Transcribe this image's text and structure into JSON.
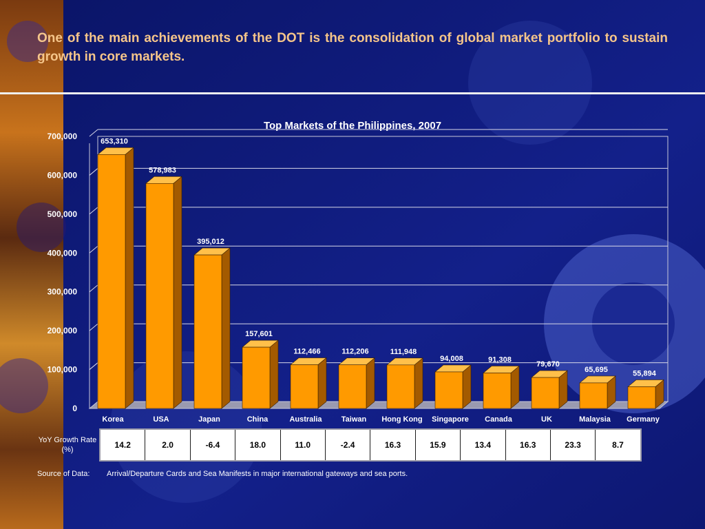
{
  "slide": {
    "heading": "One of the main achievements of the DOT is the consolidation of global market portfolio to sustain growth in core markets."
  },
  "colors": {
    "background": "#0f1a7a",
    "heading": "#f5c58a",
    "bar_front": "#ff9a00",
    "bar_top": "#ffc04a",
    "bar_side": "#a35a00"
  },
  "chart_data": {
    "type": "bar",
    "title": "Top Markets of the Philippines, 2007",
    "categories": [
      "Korea",
      "USA",
      "Japan",
      "China",
      "Australia",
      "Taiwan",
      "Hong Kong",
      "Singapore",
      "Canada",
      "UK",
      "Malaysia",
      "Germany"
    ],
    "values": [
      653310,
      578983,
      395012,
      157601,
      112466,
      112206,
      111948,
      94008,
      91308,
      79670,
      65695,
      55894
    ],
    "value_labels": [
      "653,310",
      "578,983",
      "395,012",
      "157,601",
      "112,466",
      "112,206",
      "111,948",
      "94,008",
      "91,308",
      "79,670",
      "65,695",
      "55,894"
    ],
    "ylim": [
      0,
      700000
    ],
    "yticks": [
      0,
      100000,
      200000,
      300000,
      400000,
      500000,
      600000,
      700000
    ],
    "ytick_labels": [
      "0",
      "100,000",
      "200,000",
      "300,000",
      "400,000",
      "500,000",
      "600,000",
      "700,000"
    ],
    "grid": true,
    "style": "3d-column"
  },
  "growth": {
    "label": "YoY Growth Rate (%)",
    "values": [
      "14.2",
      "2.0",
      "-6.4",
      "18.0",
      "11.0",
      "-2.4",
      "16.3",
      "15.9",
      "13.4",
      "16.3",
      "23.3",
      "8.7"
    ]
  },
  "source": {
    "label": "Source of Data:",
    "text": "Arrival/Departure Cards and Sea Manifests in major international gateways and sea ports."
  }
}
